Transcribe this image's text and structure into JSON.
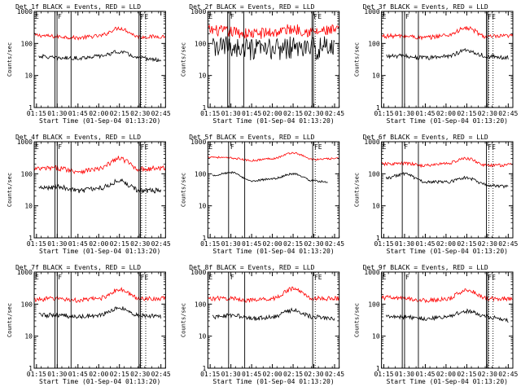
{
  "figure": {
    "colors": {
      "events": "#000000",
      "lld": "#ff0000",
      "axes": "#000000",
      "background": "#ffffff"
    },
    "shared": {
      "xlabel": "Start Time (01-Sep-04 01:13:20)",
      "ylabel": "Counts/sec",
      "x_tick_labels": [
        "01:15",
        "01:30",
        "01:45",
        "02:00",
        "02:15",
        "02:30",
        "02:45"
      ],
      "y_tick_labels": [
        "1",
        "10",
        "100",
        "1000"
      ]
    }
  },
  "chart_data": [
    {
      "type": "line",
      "title": "Det 1f BLACK = Events, RED = LLD",
      "xlabel": "Start Time (01-Sep-04 01:13:20)",
      "ylabel": "Counts/sec",
      "x_tick_labels": [
        "01:15",
        "01:30",
        "01:45",
        "02:00",
        "02:15",
        "02:30",
        "02:45"
      ],
      "y_tick_labels": [
        "1",
        "10",
        "100",
        "1000"
      ],
      "xlim_minutes_from_start": [
        0,
        95
      ],
      "ylim": [
        1,
        1000
      ],
      "y_scale": "log",
      "time_start": "01:13:20",
      "x_end": "02:48:20",
      "series": [
        {
          "name": "LLD",
          "color": "red",
          "x_range": [
            "01:13:20",
            "02:48:20"
          ],
          "anchor_x": [
            "01:13:20",
            "01:30",
            "01:45",
            "02:00",
            "02:15",
            "02:30",
            "02:48:20"
          ],
          "anchor_y": [
            180,
            165,
            150,
            170,
            300,
            160,
            165
          ],
          "noise": 0.06
        },
        {
          "name": "Events",
          "color": "black",
          "x_range": [
            "01:16:40",
            "02:45"
          ],
          "anchor_x": [
            "01:16:40",
            "01:30",
            "01:45",
            "02:00",
            "02:15",
            "02:30",
            "02:45"
          ],
          "anchor_y": [
            40,
            35,
            35,
            40,
            55,
            35,
            30
          ],
          "noise": 0.06
        }
      ],
      "vertical_lines_solid": [
        "01:28:20",
        "01:29:50",
        "01:40",
        "02:29:10",
        "02:30:10"
      ],
      "vertical_lines_dotted": [
        "02:30:40",
        "02:34:00"
      ],
      "annotations": [
        {
          "text": "E",
          "at": "01:13:20"
        },
        {
          "text": "F",
          "at": "01:29:50"
        },
        {
          "text": "FE",
          "at": "02:29:40"
        }
      ]
    },
    {
      "type": "line",
      "title": "Det 2f BLACK = Events, RED = LLD",
      "xlabel": "Start Time (01-Sep-04 01:13:20)",
      "ylabel": "Counts/sec",
      "x_tick_labels": [
        "01:15",
        "01:30",
        "01:45",
        "02:00",
        "02:15",
        "02:30",
        "02:45"
      ],
      "y_tick_labels": [
        "1",
        "10",
        "100",
        "1000"
      ],
      "xlim_minutes_from_start": [
        0,
        95
      ],
      "ylim": [
        1,
        1000
      ],
      "y_scale": "log",
      "time_start": "01:13:20",
      "x_end": "02:48:20",
      "series": [
        {
          "name": "LLD",
          "color": "red",
          "x_range": [
            "01:13:20",
            "02:48:20"
          ],
          "anchor_x": [
            "01:13:20",
            "01:30",
            "01:45",
            "02:00",
            "02:15",
            "02:30",
            "02:48:20"
          ],
          "anchor_y": [
            260,
            230,
            200,
            220,
            280,
            230,
            260
          ],
          "noise": 0.18
        },
        {
          "name": "Events",
          "color": "black",
          "x_range": [
            "01:16:40",
            "02:45"
          ],
          "anchor_x": [
            "01:16:40",
            "01:30",
            "01:45",
            "02:00",
            "02:15",
            "02:30",
            "02:45"
          ],
          "anchor_y": [
            70,
            80,
            60,
            65,
            75,
            70,
            80
          ],
          "noise": 0.35
        }
      ],
      "vertical_lines_solid": [
        "01:27:40",
        "01:29:00",
        "01:39:20",
        "02:28:40",
        "02:29:40"
      ],
      "vertical_lines_dotted": [
        "02:31:00"
      ],
      "annotations": [
        {
          "text": "E",
          "at": "01:13:20"
        },
        {
          "text": "F",
          "at": "01:29:00"
        },
        {
          "text": "FE",
          "at": "02:29:20"
        }
      ]
    },
    {
      "type": "line",
      "title": "Det 3f BLACK = Events, RED = LLD",
      "xlabel": "Start Time (01-Sep-04 01:13:20)",
      "ylabel": "Counts/sec",
      "x_tick_labels": [
        "01:15",
        "01:30",
        "01:45",
        "02:00",
        "02:15",
        "02:30",
        "02:45"
      ],
      "y_tick_labels": [
        "1",
        "10",
        "100",
        "1000"
      ],
      "xlim_minutes_from_start": [
        0,
        95
      ],
      "ylim": [
        1,
        1000
      ],
      "y_scale": "log",
      "time_start": "01:13:20",
      "x_end": "02:48:20",
      "series": [
        {
          "name": "LLD",
          "color": "red",
          "x_range": [
            "01:13:20",
            "02:48:20"
          ],
          "anchor_x": [
            "01:13:20",
            "01:30",
            "01:45",
            "02:00",
            "02:15",
            "02:30",
            "02:48:20"
          ],
          "anchor_y": [
            170,
            170,
            150,
            180,
            300,
            160,
            170
          ],
          "noise": 0.07
        },
        {
          "name": "Events",
          "color": "black",
          "x_range": [
            "01:16:40",
            "02:45"
          ],
          "anchor_x": [
            "01:16:40",
            "01:30",
            "01:45",
            "02:00",
            "02:15",
            "02:30",
            "02:45"
          ],
          "anchor_y": [
            40,
            40,
            35,
            40,
            60,
            40,
            35
          ],
          "noise": 0.07
        }
      ],
      "vertical_lines_solid": [
        "01:28:20",
        "01:30:00",
        "01:40:00",
        "02:29:10",
        "02:30:10"
      ],
      "vertical_lines_dotted": [
        "02:31:00",
        "02:34:00"
      ],
      "annotations": [
        {
          "text": "E",
          "at": "01:13:20"
        },
        {
          "text": "F",
          "at": "01:30:00"
        },
        {
          "text": "FE",
          "at": "02:29:40"
        }
      ]
    },
    {
      "type": "line",
      "title": "Det 4f BLACK = Events, RED = LLD",
      "xlabel": "Start Time (01-Sep-04 01:13:20)",
      "ylabel": "Counts/sec",
      "x_tick_labels": [
        "01:15",
        "01:30",
        "01:45",
        "02:00",
        "02:15",
        "02:30",
        "02:45"
      ],
      "y_tick_labels": [
        "1",
        "10",
        "100",
        "1000"
      ],
      "xlim_minutes_from_start": [
        0,
        95
      ],
      "ylim": [
        1,
        1000
      ],
      "y_scale": "log",
      "time_start": "01:13:20",
      "x_end": "02:48:20",
      "series": [
        {
          "name": "LLD",
          "color": "red",
          "x_range": [
            "01:13:20",
            "02:48:20"
          ],
          "anchor_x": [
            "01:13:20",
            "01:30",
            "01:45",
            "02:00",
            "02:15",
            "02:30",
            "02:48:20"
          ],
          "anchor_y": [
            140,
            150,
            120,
            140,
            300,
            140,
            150
          ],
          "noise": 0.08
        },
        {
          "name": "Events",
          "color": "black",
          "x_range": [
            "01:16:40",
            "02:45"
          ],
          "anchor_x": [
            "01:16:40",
            "01:30",
            "01:45",
            "02:00",
            "02:15",
            "02:30",
            "02:45"
          ],
          "anchor_y": [
            35,
            40,
            30,
            35,
            60,
            30,
            30
          ],
          "noise": 0.08
        }
      ],
      "vertical_lines_solid": [
        "01:28:20",
        "01:30:00",
        "01:40:00",
        "02:29:10",
        "02:30:10"
      ],
      "vertical_lines_dotted": [
        "02:31:00",
        "02:34:00"
      ],
      "annotations": [
        {
          "text": "E",
          "at": "01:13:20"
        },
        {
          "text": "F",
          "at": "01:30:00"
        },
        {
          "text": "FE",
          "at": "02:29:40"
        }
      ]
    },
    {
      "type": "line",
      "title": "Det 5f BLACK = Events, RED = LLD",
      "xlabel": "Start Time (01-Sep-04 01:13:20)",
      "ylabel": "Counts/sec",
      "x_tick_labels": [
        "01:15",
        "01:30",
        "01:45",
        "02:00",
        "02:15",
        "02:30",
        "02:45"
      ],
      "y_tick_labels": [
        "1",
        "10",
        "100",
        "1000"
      ],
      "xlim_minutes_from_start": [
        0,
        95
      ],
      "ylim": [
        1,
        1000
      ],
      "y_scale": "log",
      "time_start": "01:13:20",
      "x_end": "02:48:20",
      "series": [
        {
          "name": "LLD",
          "color": "red",
          "x_range": [
            "01:13:20",
            "02:48:20"
          ],
          "anchor_x": [
            "01:13:20",
            "01:30",
            "01:45",
            "02:00",
            "02:15",
            "02:30",
            "02:48:20"
          ],
          "anchor_y": [
            340,
            310,
            260,
            300,
            450,
            280,
            300
          ],
          "noise": 0.03
        },
        {
          "name": "Events",
          "color": "black",
          "x_range": [
            "01:16:40",
            "02:40"
          ],
          "anchor_x": [
            "01:16:40",
            "01:30",
            "01:45",
            "02:00",
            "02:15",
            "02:30",
            "02:40"
          ],
          "anchor_y": [
            90,
            110,
            60,
            70,
            100,
            60,
            55
          ],
          "noise": 0.03
        }
      ],
      "vertical_lines_solid": [
        "01:28:20",
        "01:40:00",
        "02:29:10"
      ],
      "vertical_lines_dotted": [
        "02:31:00"
      ],
      "annotations": [
        {
          "text": "E",
          "at": "01:13:20"
        },
        {
          "text": "F",
          "at": "01:29:00"
        },
        {
          "text": "FE",
          "at": "02:29:40"
        }
      ]
    },
    {
      "type": "line",
      "title": "Det 6f BLACK = Events, RED = LLD",
      "xlabel": "Start Time (01-Sep-04 01:13:20)",
      "ylabel": "Counts/sec",
      "x_tick_labels": [
        "01:15",
        "01:30",
        "01:45",
        "02:00",
        "02:15",
        "02:30",
        "02:45"
      ],
      "y_tick_labels": [
        "1",
        "10",
        "100",
        "1000"
      ],
      "xlim_minutes_from_start": [
        0,
        95
      ],
      "ylim": [
        1,
        1000
      ],
      "y_scale": "log",
      "time_start": "01:13:20",
      "x_end": "02:48:20",
      "series": [
        {
          "name": "LLD",
          "color": "red",
          "x_range": [
            "01:13:20",
            "02:48:20"
          ],
          "anchor_x": [
            "01:13:20",
            "01:30",
            "01:45",
            "02:00",
            "02:15",
            "02:30",
            "02:48:20"
          ],
          "anchor_y": [
            200,
            210,
            180,
            210,
            300,
            180,
            190
          ],
          "noise": 0.05
        },
        {
          "name": "Events",
          "color": "black",
          "x_range": [
            "01:16:40",
            "02:45"
          ],
          "anchor_x": [
            "01:16:40",
            "01:30",
            "01:45",
            "02:00",
            "02:15",
            "02:30",
            "02:45"
          ],
          "anchor_y": [
            75,
            100,
            55,
            55,
            75,
            45,
            40
          ],
          "noise": 0.05
        }
      ],
      "vertical_lines_solid": [
        "01:28:20",
        "01:40:00",
        "02:29:10"
      ],
      "vertical_lines_dotted": [
        "02:31:00",
        "02:34:00"
      ],
      "annotations": [
        {
          "text": "E",
          "at": "01:13:20"
        },
        {
          "text": "F",
          "at": "01:29:00"
        },
        {
          "text": "FE",
          "at": "02:29:40"
        }
      ]
    },
    {
      "type": "line",
      "title": "Det 7f BLACK = Events, RED = LLD",
      "xlabel": "Start Time (01-Sep-04 01:13:20)",
      "ylabel": "Counts/sec",
      "x_tick_labels": [
        "01:15",
        "01:30",
        "01:45",
        "02:00",
        "02:15",
        "02:30",
        "02:45"
      ],
      "y_tick_labels": [
        "1",
        "10",
        "100",
        "1000"
      ],
      "xlim_minutes_from_start": [
        0,
        95
      ],
      "ylim": [
        1,
        1000
      ],
      "y_scale": "log",
      "time_start": "01:13:20",
      "x_end": "02:48:20",
      "series": [
        {
          "name": "LLD",
          "color": "red",
          "x_range": [
            "01:13:20",
            "02:48:20"
          ],
          "anchor_x": [
            "01:13:20",
            "01:30",
            "01:45",
            "02:00",
            "02:15",
            "02:30",
            "02:48:20"
          ],
          "anchor_y": [
            140,
            150,
            130,
            150,
            280,
            150,
            150
          ],
          "noise": 0.07
        },
        {
          "name": "Events",
          "color": "black",
          "x_range": [
            "01:16:40",
            "02:45"
          ],
          "anchor_x": [
            "01:16:40",
            "01:30",
            "01:45",
            "02:00",
            "02:15",
            "02:30",
            "02:45"
          ],
          "anchor_y": [
            45,
            45,
            40,
            45,
            75,
            45,
            40
          ],
          "noise": 0.07
        }
      ],
      "vertical_lines_solid": [
        "01:28:20",
        "01:30:00",
        "01:40:00",
        "02:29:10",
        "02:30:10"
      ],
      "vertical_lines_dotted": [
        "02:31:00",
        "02:34:00"
      ],
      "annotations": [
        {
          "text": "E",
          "at": "01:13:20"
        },
        {
          "text": "F",
          "at": "01:30:00"
        },
        {
          "text": "FE",
          "at": "02:29:40"
        }
      ]
    },
    {
      "type": "line",
      "title": "Det 8f BLACK = Events, RED = LLD",
      "xlabel": "Start Time (01-Sep-04 01:13:20)",
      "ylabel": "Counts/sec",
      "x_tick_labels": [
        "01:15",
        "01:30",
        "01:45",
        "02:00",
        "02:15",
        "02:30",
        "02:45"
      ],
      "y_tick_labels": [
        "1",
        "10",
        "100",
        "1000"
      ],
      "xlim_minutes_from_start": [
        0,
        95
      ],
      "ylim": [
        1,
        1000
      ],
      "y_scale": "log",
      "time_start": "01:13:20",
      "x_end": "02:48:20",
      "series": [
        {
          "name": "LLD",
          "color": "red",
          "x_range": [
            "01:13:20",
            "02:48:20"
          ],
          "anchor_x": [
            "01:13:20",
            "01:30",
            "01:45",
            "02:00",
            "02:15",
            "02:30",
            "02:48:20"
          ],
          "anchor_y": [
            150,
            150,
            130,
            150,
            300,
            150,
            150
          ],
          "noise": 0.07
        },
        {
          "name": "Events",
          "color": "black",
          "x_range": [
            "01:16:40",
            "02:45"
          ],
          "anchor_x": [
            "01:16:40",
            "01:30",
            "01:45",
            "02:00",
            "02:15",
            "02:30",
            "02:45"
          ],
          "anchor_y": [
            40,
            45,
            35,
            40,
            65,
            40,
            35
          ],
          "noise": 0.07
        }
      ],
      "vertical_lines_solid": [
        "01:28:20",
        "01:40:00",
        "02:29:10"
      ],
      "vertical_lines_dotted": [
        "02:31:00"
      ],
      "annotations": [
        {
          "text": "E",
          "at": "01:13:20"
        },
        {
          "text": "F",
          "at": "01:29:00"
        },
        {
          "text": "FE",
          "at": "02:29:40"
        }
      ]
    },
    {
      "type": "line",
      "title": "Det 9f BLACK = Events, RED = LLD",
      "xlabel": "Start Time (01-Sep-04 01:13:20)",
      "ylabel": "Counts/sec",
      "x_tick_labels": [
        "01:15",
        "01:30",
        "01:45",
        "02:00",
        "02:15",
        "02:30",
        "02:45"
      ],
      "y_tick_labels": [
        "1",
        "10",
        "100",
        "1000"
      ],
      "xlim_minutes_from_start": [
        0,
        95
      ],
      "ylim": [
        1,
        1000
      ],
      "y_scale": "log",
      "time_start": "01:13:20",
      "x_end": "02:48:20",
      "series": [
        {
          "name": "LLD",
          "color": "red",
          "x_range": [
            "01:13:20",
            "02:48:20"
          ],
          "anchor_x": [
            "01:13:20",
            "01:30",
            "01:45",
            "02:00",
            "02:15",
            "02:30",
            "02:48:20"
          ],
          "anchor_y": [
            160,
            150,
            130,
            140,
            280,
            150,
            150
          ],
          "noise": 0.07
        },
        {
          "name": "Events",
          "color": "black",
          "x_range": [
            "01:16:40",
            "02:45"
          ],
          "anchor_x": [
            "01:16:40",
            "01:30",
            "01:45",
            "02:00",
            "02:15",
            "02:30",
            "02:45"
          ],
          "anchor_y": [
            40,
            40,
            35,
            40,
            60,
            40,
            30
          ],
          "noise": 0.07
        }
      ],
      "vertical_lines_solid": [
        "01:28:20",
        "01:30:00",
        "01:40:00",
        "02:29:10",
        "02:30:10"
      ],
      "vertical_lines_dotted": [
        "02:31:00",
        "02:34:00"
      ],
      "annotations": [
        {
          "text": "E",
          "at": "01:13:20"
        },
        {
          "text": "F",
          "at": "01:30:00"
        },
        {
          "text": "FE",
          "at": "02:29:40"
        }
      ]
    }
  ]
}
